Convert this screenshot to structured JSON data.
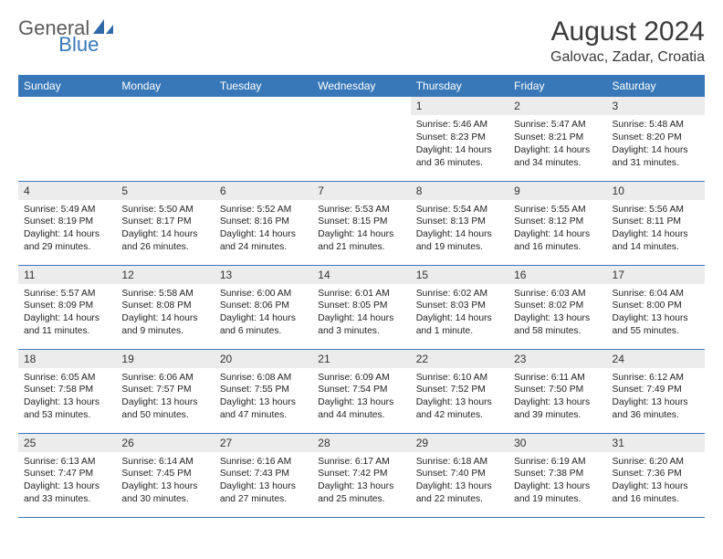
{
  "brand": {
    "part1": "General",
    "part2": "Blue"
  },
  "title": "August 2024",
  "location": "Galovac, Zadar, Croatia",
  "styling": {
    "header_bg": "#3978b8",
    "header_text": "#ffffff",
    "daynum_bg": "#ececec",
    "border_color": "#3978b8",
    "title_fontsize": 30,
    "location_fontsize": 16,
    "dayheader_fontsize": 12,
    "cell_fontsize": 10.3
  },
  "dayHeaders": [
    "Sunday",
    "Monday",
    "Tuesday",
    "Wednesday",
    "Thursday",
    "Friday",
    "Saturday"
  ],
  "weeks": [
    [
      {
        "n": "",
        "lines": []
      },
      {
        "n": "",
        "lines": []
      },
      {
        "n": "",
        "lines": []
      },
      {
        "n": "",
        "lines": []
      },
      {
        "n": "1",
        "lines": [
          "Sunrise: 5:46 AM",
          "Sunset: 8:23 PM",
          "Daylight: 14 hours and 36 minutes."
        ]
      },
      {
        "n": "2",
        "lines": [
          "Sunrise: 5:47 AM",
          "Sunset: 8:21 PM",
          "Daylight: 14 hours and 34 minutes."
        ]
      },
      {
        "n": "3",
        "lines": [
          "Sunrise: 5:48 AM",
          "Sunset: 8:20 PM",
          "Daylight: 14 hours and 31 minutes."
        ]
      }
    ],
    [
      {
        "n": "4",
        "lines": [
          "Sunrise: 5:49 AM",
          "Sunset: 8:19 PM",
          "Daylight: 14 hours and 29 minutes."
        ]
      },
      {
        "n": "5",
        "lines": [
          "Sunrise: 5:50 AM",
          "Sunset: 8:17 PM",
          "Daylight: 14 hours and 26 minutes."
        ]
      },
      {
        "n": "6",
        "lines": [
          "Sunrise: 5:52 AM",
          "Sunset: 8:16 PM",
          "Daylight: 14 hours and 24 minutes."
        ]
      },
      {
        "n": "7",
        "lines": [
          "Sunrise: 5:53 AM",
          "Sunset: 8:15 PM",
          "Daylight: 14 hours and 21 minutes."
        ]
      },
      {
        "n": "8",
        "lines": [
          "Sunrise: 5:54 AM",
          "Sunset: 8:13 PM",
          "Daylight: 14 hours and 19 minutes."
        ]
      },
      {
        "n": "9",
        "lines": [
          "Sunrise: 5:55 AM",
          "Sunset: 8:12 PM",
          "Daylight: 14 hours and 16 minutes."
        ]
      },
      {
        "n": "10",
        "lines": [
          "Sunrise: 5:56 AM",
          "Sunset: 8:11 PM",
          "Daylight: 14 hours and 14 minutes."
        ]
      }
    ],
    [
      {
        "n": "11",
        "lines": [
          "Sunrise: 5:57 AM",
          "Sunset: 8:09 PM",
          "Daylight: 14 hours and 11 minutes."
        ]
      },
      {
        "n": "12",
        "lines": [
          "Sunrise: 5:58 AM",
          "Sunset: 8:08 PM",
          "Daylight: 14 hours and 9 minutes."
        ]
      },
      {
        "n": "13",
        "lines": [
          "Sunrise: 6:00 AM",
          "Sunset: 8:06 PM",
          "Daylight: 14 hours and 6 minutes."
        ]
      },
      {
        "n": "14",
        "lines": [
          "Sunrise: 6:01 AM",
          "Sunset: 8:05 PM",
          "Daylight: 14 hours and 3 minutes."
        ]
      },
      {
        "n": "15",
        "lines": [
          "Sunrise: 6:02 AM",
          "Sunset: 8:03 PM",
          "Daylight: 14 hours and 1 minute."
        ]
      },
      {
        "n": "16",
        "lines": [
          "Sunrise: 6:03 AM",
          "Sunset: 8:02 PM",
          "Daylight: 13 hours and 58 minutes."
        ]
      },
      {
        "n": "17",
        "lines": [
          "Sunrise: 6:04 AM",
          "Sunset: 8:00 PM",
          "Daylight: 13 hours and 55 minutes."
        ]
      }
    ],
    [
      {
        "n": "18",
        "lines": [
          "Sunrise: 6:05 AM",
          "Sunset: 7:58 PM",
          "Daylight: 13 hours and 53 minutes."
        ]
      },
      {
        "n": "19",
        "lines": [
          "Sunrise: 6:06 AM",
          "Sunset: 7:57 PM",
          "Daylight: 13 hours and 50 minutes."
        ]
      },
      {
        "n": "20",
        "lines": [
          "Sunrise: 6:08 AM",
          "Sunset: 7:55 PM",
          "Daylight: 13 hours and 47 minutes."
        ]
      },
      {
        "n": "21",
        "lines": [
          "Sunrise: 6:09 AM",
          "Sunset: 7:54 PM",
          "Daylight: 13 hours and 44 minutes."
        ]
      },
      {
        "n": "22",
        "lines": [
          "Sunrise: 6:10 AM",
          "Sunset: 7:52 PM",
          "Daylight: 13 hours and 42 minutes."
        ]
      },
      {
        "n": "23",
        "lines": [
          "Sunrise: 6:11 AM",
          "Sunset: 7:50 PM",
          "Daylight: 13 hours and 39 minutes."
        ]
      },
      {
        "n": "24",
        "lines": [
          "Sunrise: 6:12 AM",
          "Sunset: 7:49 PM",
          "Daylight: 13 hours and 36 minutes."
        ]
      }
    ],
    [
      {
        "n": "25",
        "lines": [
          "Sunrise: 6:13 AM",
          "Sunset: 7:47 PM",
          "Daylight: 13 hours and 33 minutes."
        ]
      },
      {
        "n": "26",
        "lines": [
          "Sunrise: 6:14 AM",
          "Sunset: 7:45 PM",
          "Daylight: 13 hours and 30 minutes."
        ]
      },
      {
        "n": "27",
        "lines": [
          "Sunrise: 6:16 AM",
          "Sunset: 7:43 PM",
          "Daylight: 13 hours and 27 minutes."
        ]
      },
      {
        "n": "28",
        "lines": [
          "Sunrise: 6:17 AM",
          "Sunset: 7:42 PM",
          "Daylight: 13 hours and 25 minutes."
        ]
      },
      {
        "n": "29",
        "lines": [
          "Sunrise: 6:18 AM",
          "Sunset: 7:40 PM",
          "Daylight: 13 hours and 22 minutes."
        ]
      },
      {
        "n": "30",
        "lines": [
          "Sunrise: 6:19 AM",
          "Sunset: 7:38 PM",
          "Daylight: 13 hours and 19 minutes."
        ]
      },
      {
        "n": "31",
        "lines": [
          "Sunrise: 6:20 AM",
          "Sunset: 7:36 PM",
          "Daylight: 13 hours and 16 minutes."
        ]
      }
    ]
  ]
}
